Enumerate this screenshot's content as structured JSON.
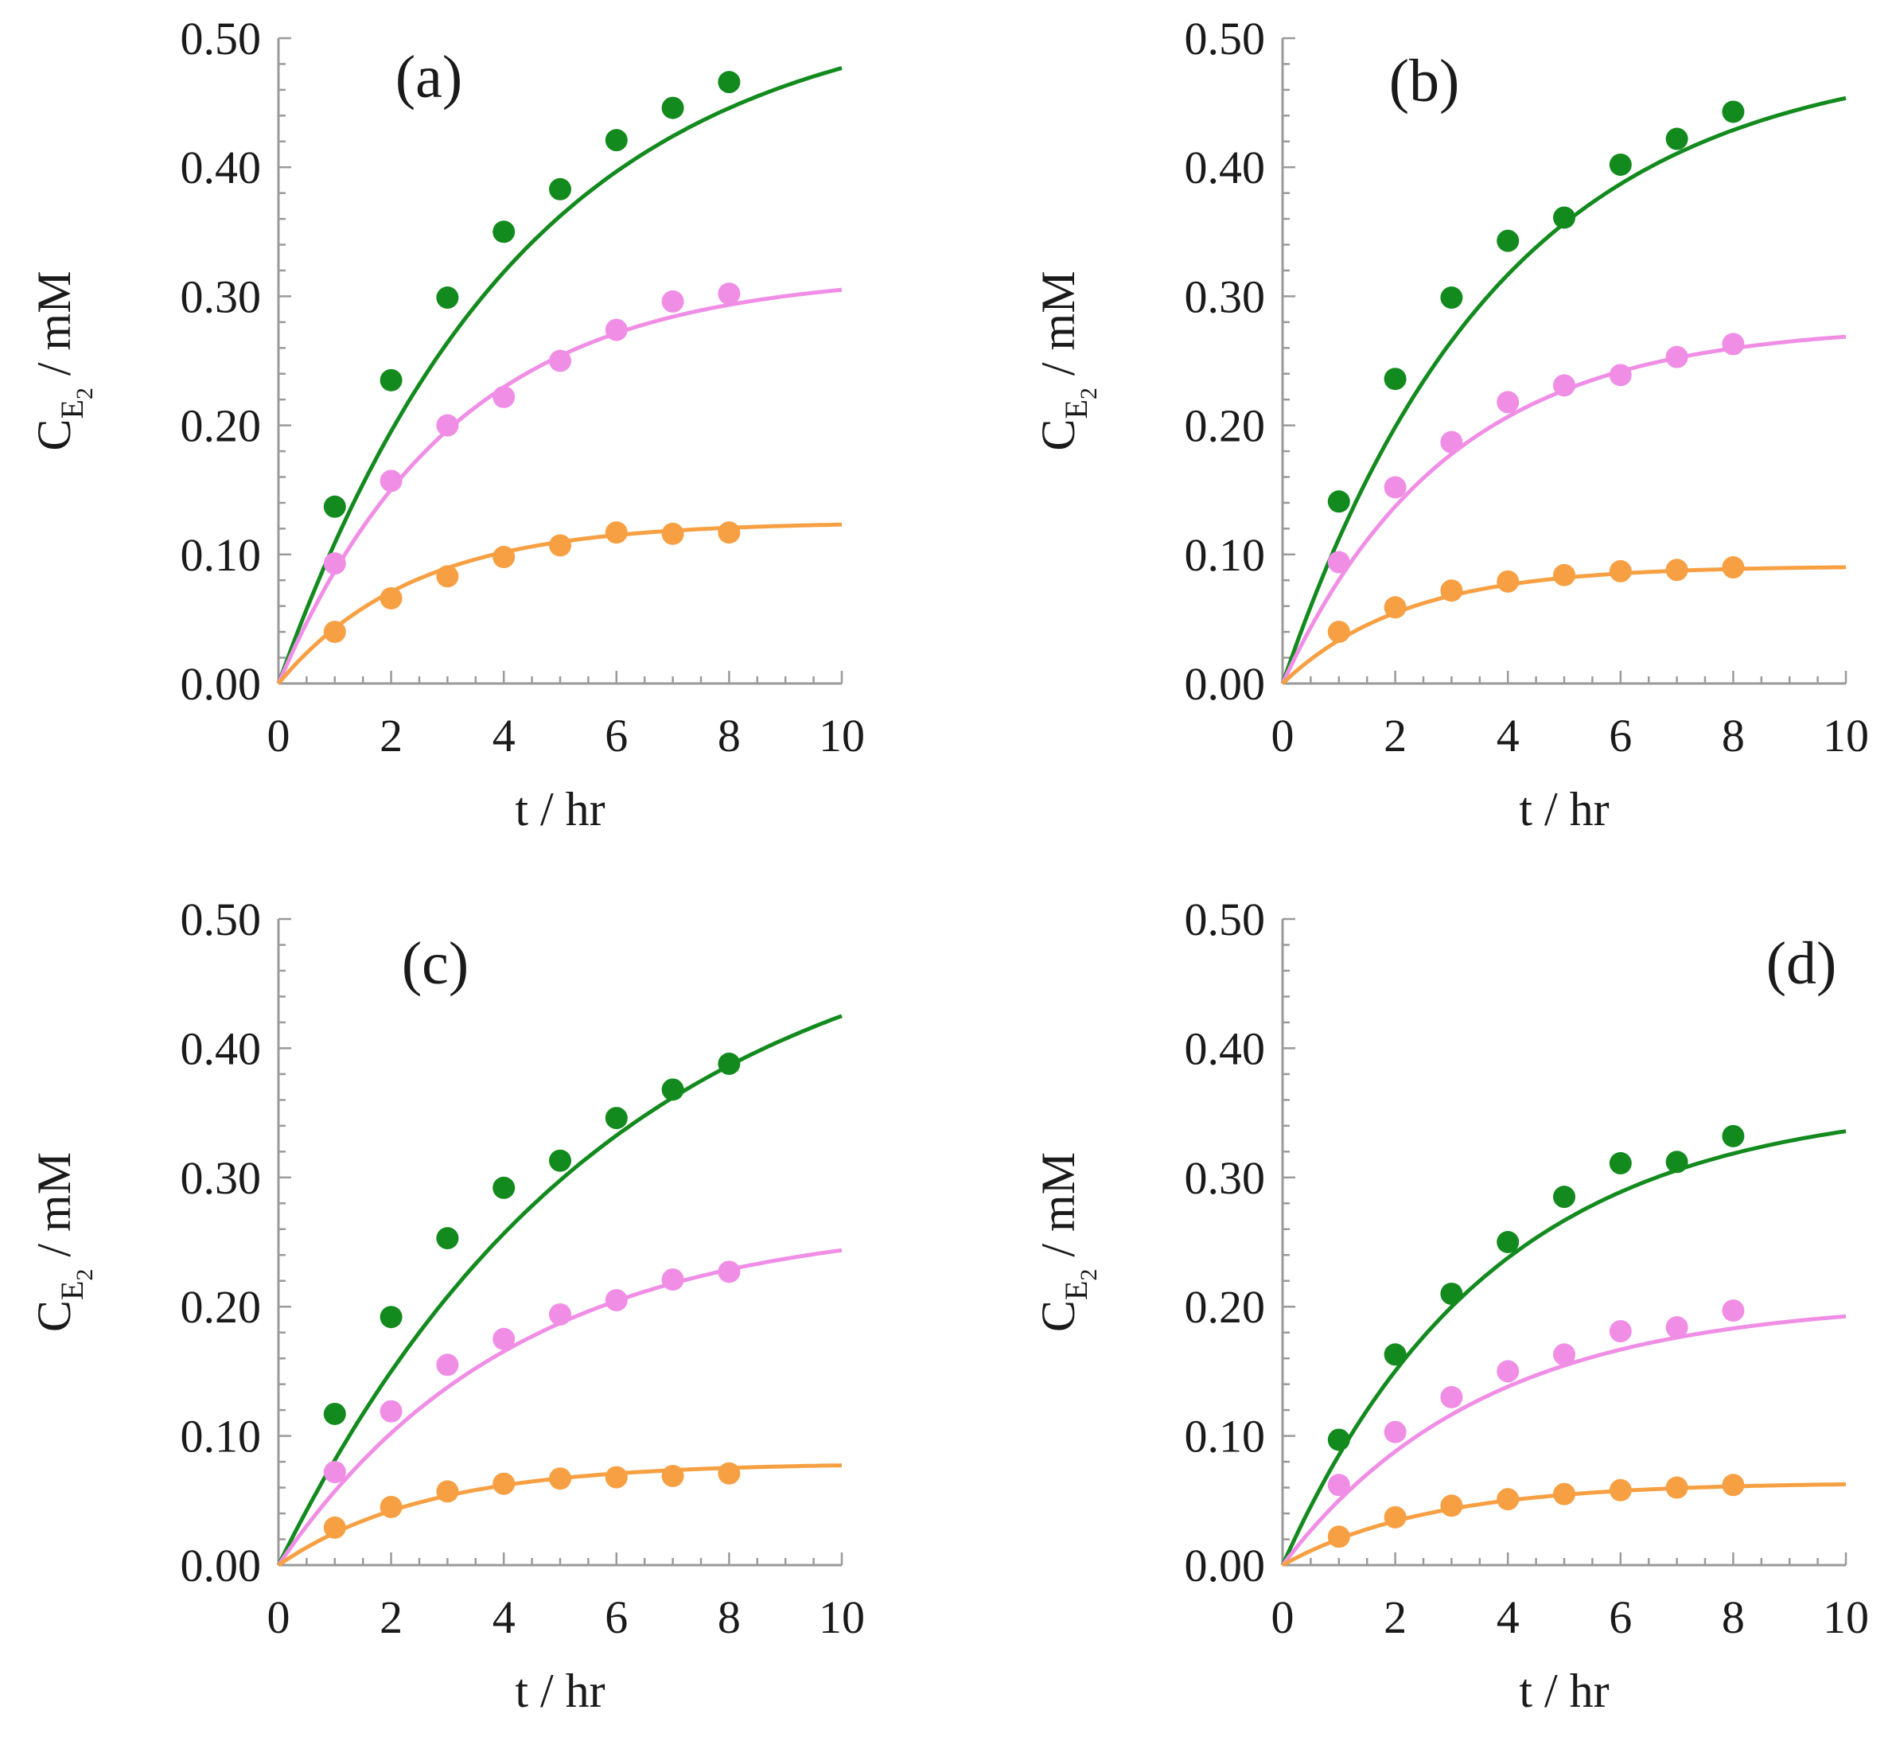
{
  "chart_data": [
    {
      "type": "scatter",
      "panel_label": "(a)",
      "xlabel": "t / hr",
      "ylabel": {
        "main": "C",
        "sub": "E",
        "subsub": "2",
        "unit": " / mM"
      },
      "xlim": [
        0,
        10
      ],
      "ylim": [
        0,
        0.5
      ],
      "x_ticks": [
        "0",
        "2",
        "4",
        "6",
        "8",
        "10"
      ],
      "y_ticks": [
        "0.00",
        "0.10",
        "0.20",
        "0.30",
        "0.40",
        "0.50"
      ],
      "series": [
        {
          "color": "#138a1e",
          "x": [
            1,
            2,
            3,
            4,
            5,
            6,
            7,
            8
          ],
          "y": [
            0.137,
            0.235,
            0.299,
            0.35,
            0.383,
            0.421,
            0.446,
            0.466
          ],
          "fit": {
            "max": 0.53,
            "k": 0.23
          }
        },
        {
          "color": "#f08ee6",
          "x": [
            1,
            2,
            3,
            4,
            5,
            6,
            7,
            8
          ],
          "y": [
            0.093,
            0.157,
            0.2,
            0.222,
            0.25,
            0.274,
            0.296,
            0.302
          ],
          "fit": {
            "max": 0.318,
            "k": 0.32
          }
        },
        {
          "color": "#f7a043",
          "x": [
            1,
            2,
            3,
            4,
            5,
            6,
            7,
            8
          ],
          "y": [
            0.04,
            0.066,
            0.083,
            0.098,
            0.107,
            0.117,
            0.116,
            0.117
          ],
          "fit": {
            "max": 0.125,
            "k": 0.42
          }
        }
      ]
    },
    {
      "type": "scatter",
      "panel_label": "(b)",
      "xlabel": "t / hr",
      "ylabel": {
        "main": "C",
        "sub": "E",
        "subsub": "2",
        "unit": " / mM"
      },
      "xlim": [
        0,
        10
      ],
      "ylim": [
        0,
        0.5
      ],
      "x_ticks": [
        "0",
        "2",
        "4",
        "6",
        "8",
        "10"
      ],
      "y_ticks": [
        "0.00",
        "0.10",
        "0.20",
        "0.30",
        "0.40",
        "0.50"
      ],
      "series": [
        {
          "color": "#138a1e",
          "x": [
            1,
            2,
            3,
            4,
            5,
            6,
            7,
            8
          ],
          "y": [
            0.141,
            0.236,
            0.299,
            0.343,
            0.361,
            0.402,
            0.422,
            0.443
          ],
          "fit": {
            "max": 0.49,
            "k": 0.26
          }
        },
        {
          "color": "#f08ee6",
          "x": [
            1,
            2,
            3,
            4,
            5,
            6,
            7,
            8
          ],
          "y": [
            0.094,
            0.152,
            0.187,
            0.218,
            0.231,
            0.239,
            0.253,
            0.263
          ],
          "fit": {
            "max": 0.278,
            "k": 0.34
          }
        },
        {
          "color": "#f7a043",
          "x": [
            1,
            2,
            3,
            4,
            5,
            6,
            7,
            8
          ],
          "y": [
            0.04,
            0.059,
            0.072,
            0.079,
            0.084,
            0.087,
            0.088,
            0.09
          ],
          "fit": {
            "max": 0.091,
            "k": 0.46
          }
        }
      ]
    },
    {
      "type": "scatter",
      "panel_label": "(c)",
      "xlabel": "t / hr",
      "ylabel": {
        "main": "C",
        "sub": "E",
        "subsub": "2",
        "unit": " / mM"
      },
      "xlim": [
        0,
        10
      ],
      "ylim": [
        0,
        0.5
      ],
      "x_ticks": [
        "0",
        "2",
        "4",
        "6",
        "8",
        "10"
      ],
      "y_ticks": [
        "0.00",
        "0.10",
        "0.20",
        "0.30",
        "0.40",
        "0.50"
      ],
      "series": [
        {
          "color": "#138a1e",
          "x": [
            1,
            2,
            3,
            4,
            5,
            6,
            7,
            8
          ],
          "y": [
            0.117,
            0.192,
            0.253,
            0.292,
            0.313,
            0.346,
            0.368,
            0.388
          ],
          "fit": {
            "max": 0.52,
            "k": 0.17
          }
        },
        {
          "color": "#f08ee6",
          "x": [
            1,
            2,
            3,
            4,
            5,
            6,
            7,
            8
          ],
          "y": [
            0.072,
            0.119,
            0.155,
            0.175,
            0.194,
            0.205,
            0.221,
            0.227
          ],
          "fit": {
            "max": 0.268,
            "k": 0.24
          }
        },
        {
          "color": "#f7a043",
          "x": [
            1,
            2,
            3,
            4,
            5,
            6,
            7,
            8
          ],
          "y": [
            0.029,
            0.045,
            0.057,
            0.063,
            0.067,
            0.068,
            0.069,
            0.071
          ],
          "fit": {
            "max": 0.079,
            "k": 0.38
          }
        }
      ]
    },
    {
      "type": "scatter",
      "panel_label": "(d)",
      "xlabel": "t / hr",
      "ylabel": {
        "main": "C",
        "sub": "E",
        "subsub": "2",
        "unit": " / mM"
      },
      "xlim": [
        0,
        10
      ],
      "ylim": [
        0,
        0.5
      ],
      "x_ticks": [
        "0",
        "2",
        "4",
        "6",
        "8",
        "10"
      ],
      "y_ticks": [
        "0.00",
        "0.10",
        "0.20",
        "0.30",
        "0.40",
        "0.50"
      ],
      "series": [
        {
          "color": "#138a1e",
          "x": [
            1,
            2,
            3,
            4,
            5,
            6,
            7,
            8
          ],
          "y": [
            0.097,
            0.163,
            0.21,
            0.25,
            0.285,
            0.311,
            0.312,
            0.332
          ],
          "fit": {
            "max": 0.36,
            "k": 0.27
          }
        },
        {
          "color": "#f08ee6",
          "x": [
            1,
            2,
            3,
            4,
            5,
            6,
            7,
            8
          ],
          "y": [
            0.062,
            0.103,
            0.13,
            0.15,
            0.163,
            0.181,
            0.184,
            0.197
          ],
          "fit": {
            "max": 0.205,
            "k": 0.28
          }
        },
        {
          "color": "#f7a043",
          "x": [
            1,
            2,
            3,
            4,
            5,
            6,
            7,
            8
          ],
          "y": [
            0.022,
            0.037,
            0.046,
            0.051,
            0.055,
            0.058,
            0.06,
            0.062
          ],
          "fit": {
            "max": 0.064,
            "k": 0.38
          }
        }
      ]
    }
  ]
}
